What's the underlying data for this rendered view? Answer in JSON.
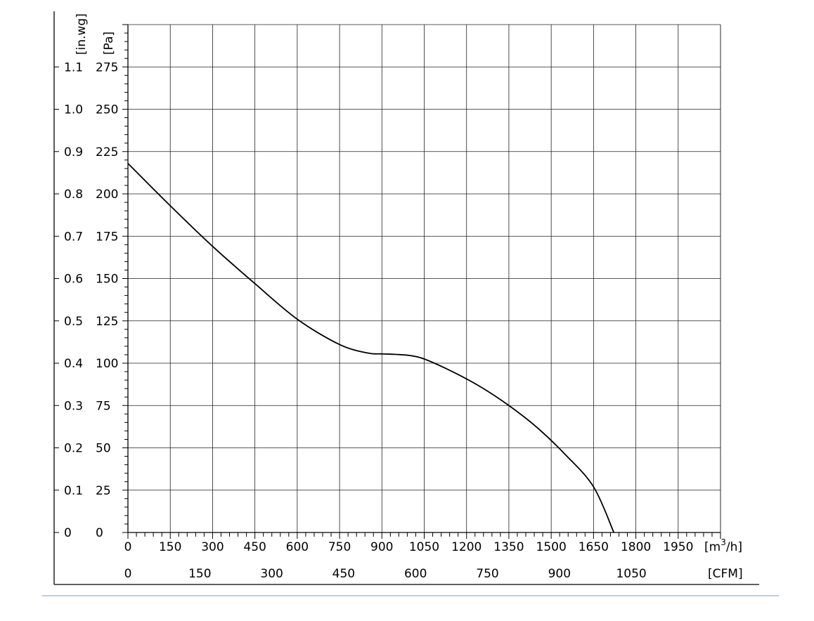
{
  "chart_data": {
    "type": "line",
    "x_unit_label": "[m³/h]",
    "x_unit_base": "[m",
    "x_unit_sup": "3",
    "x_unit_tail": "/h]",
    "x2_unit_label": "[CFM]",
    "y_unit_label": "[Pa]",
    "y2_unit_label": "[in.wg]",
    "xlim": [
      0,
      2100
    ],
    "ylim": [
      0,
      300
    ],
    "x_ticks": [
      0,
      150,
      300,
      450,
      600,
      750,
      900,
      1050,
      1200,
      1350,
      1500,
      1650,
      1800,
      1950
    ],
    "x2_ticks": [
      "0",
      "150",
      "300",
      "450",
      "600",
      "750",
      "900",
      "1050"
    ],
    "x2_tick_m3h": [
      0,
      254.85,
      509.7,
      764.55,
      1019.4,
      1274.25,
      1529.1,
      1783.95
    ],
    "y_ticks": [
      "0",
      "25",
      "50",
      "75",
      "100",
      "125",
      "150",
      "175",
      "200",
      "225",
      "250",
      "275"
    ],
    "y2_ticks": [
      "0",
      "0.1",
      "0.2",
      "0.3",
      "0.4",
      "0.5",
      "0.6",
      "0.7",
      "0.8",
      "0.9",
      "1.0",
      "1.1"
    ],
    "grid": true,
    "series": [
      {
        "x": [
          0,
          150,
          300,
          450,
          600,
          750,
          850,
          900,
          950,
          1000,
          1050,
          1150,
          1250,
          1350,
          1450,
          1550,
          1650,
          1722
        ],
        "y": [
          218,
          193,
          169,
          147,
          126,
          111,
          106,
          105.5,
          105.2,
          104.5,
          102.5,
          95,
          86,
          75,
          62,
          46,
          27,
          0
        ]
      }
    ]
  }
}
